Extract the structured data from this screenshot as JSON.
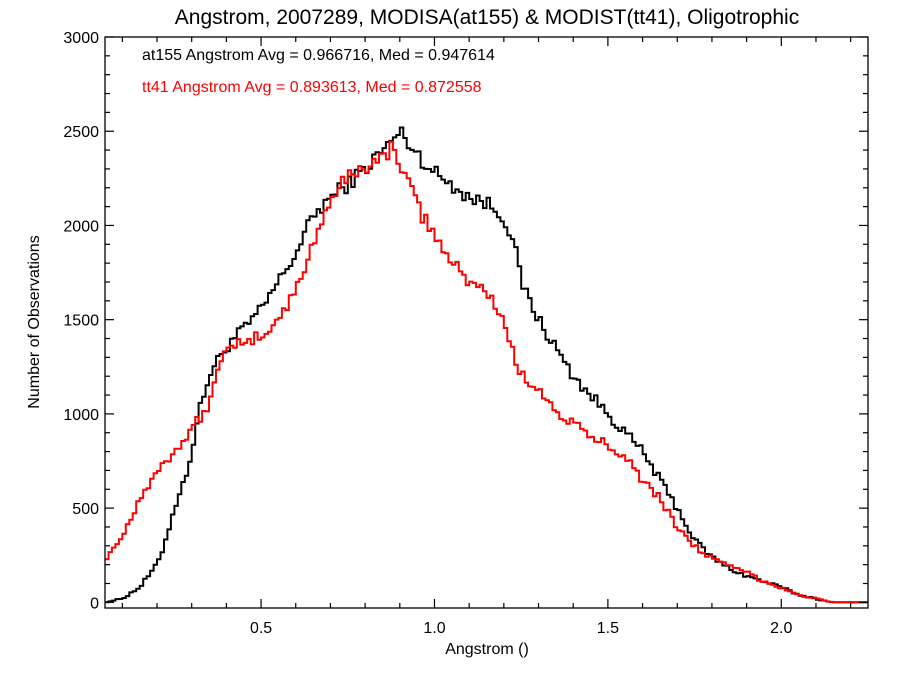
{
  "chart_data": {
    "type": "line",
    "style": "step-histogram",
    "title": "Angstrom, 2007289, MODISA(at155) & MODIST(tt41), Oligotrophic",
    "xlabel": "Angstrom ()",
    "ylabel": "Number of Observations",
    "xlim": [
      0.05,
      2.25
    ],
    "ylim": [
      -30,
      3000
    ],
    "xticks": [
      0.5,
      1.0,
      1.5,
      2.0
    ],
    "xtick_labels": [
      "0.5",
      "1.0",
      "1.5",
      "2.0"
    ],
    "yticks": [
      0,
      500,
      1000,
      1500,
      2000,
      2500,
      3000
    ],
    "ytick_labels": [
      "0",
      "500",
      "1000",
      "1500",
      "2000",
      "2500",
      "3000"
    ],
    "grid": false,
    "annotations": [
      {
        "text": "at155 Angstrom Avg = 0.966716, Med = 0.947614",
        "color": "#000000"
      },
      {
        "text": "tt41 Angstrom Avg = 0.893613, Med = 0.872558",
        "color": "#ff0000"
      }
    ],
    "series": [
      {
        "color": "#000000",
        "x": [
          0.05,
          0.1,
          0.15,
          0.2,
          0.22,
          0.25,
          0.28,
          0.3,
          0.32,
          0.35,
          0.38,
          0.4,
          0.42,
          0.45,
          0.5,
          0.55,
          0.6,
          0.65,
          0.7,
          0.75,
          0.8,
          0.85,
          0.88,
          0.9,
          0.95,
          1.0,
          1.05,
          1.1,
          1.15,
          1.2,
          1.23,
          1.25,
          1.3,
          1.35,
          1.4,
          1.45,
          1.5,
          1.55,
          1.6,
          1.65,
          1.7,
          1.75,
          1.8,
          1.85,
          1.9,
          1.95,
          2.0,
          2.05,
          2.1,
          2.13,
          2.15,
          2.25
        ],
        "y": [
          0,
          20,
          80,
          200,
          300,
          500,
          650,
          800,
          1000,
          1200,
          1300,
          1350,
          1400,
          1450,
          1550,
          1700,
          1850,
          2050,
          2150,
          2220,
          2300,
          2400,
          2450,
          2500,
          2380,
          2280,
          2220,
          2150,
          2120,
          2050,
          1900,
          1700,
          1500,
          1350,
          1200,
          1100,
          1000,
          900,
          800,
          650,
          500,
          330,
          240,
          180,
          140,
          110,
          80,
          40,
          20,
          5,
          0,
          0
        ]
      },
      {
        "color": "#ff0000",
        "x": [
          0.05,
          0.1,
          0.15,
          0.2,
          0.25,
          0.3,
          0.35,
          0.38,
          0.4,
          0.42,
          0.45,
          0.5,
          0.55,
          0.6,
          0.65,
          0.7,
          0.75,
          0.8,
          0.85,
          0.88,
          0.9,
          0.95,
          1.0,
          1.05,
          1.1,
          1.15,
          1.2,
          1.23,
          1.25,
          1.3,
          1.35,
          1.4,
          1.45,
          1.5,
          1.55,
          1.6,
          1.65,
          1.7,
          1.75,
          1.8,
          1.85,
          1.9,
          1.95,
          2.0,
          2.05,
          2.1,
          2.15,
          2.25
        ],
        "y": [
          230,
          350,
          550,
          700,
          800,
          920,
          1050,
          1250,
          1380,
          1380,
          1350,
          1420,
          1500,
          1650,
          1900,
          2150,
          2250,
          2320,
          2350,
          2420,
          2350,
          2100,
          1950,
          1800,
          1700,
          1650,
          1500,
          1300,
          1200,
          1150,
          1000,
          950,
          870,
          840,
          780,
          650,
          550,
          400,
          300,
          230,
          190,
          160,
          110,
          80,
          40,
          20,
          0,
          0
        ]
      }
    ]
  }
}
